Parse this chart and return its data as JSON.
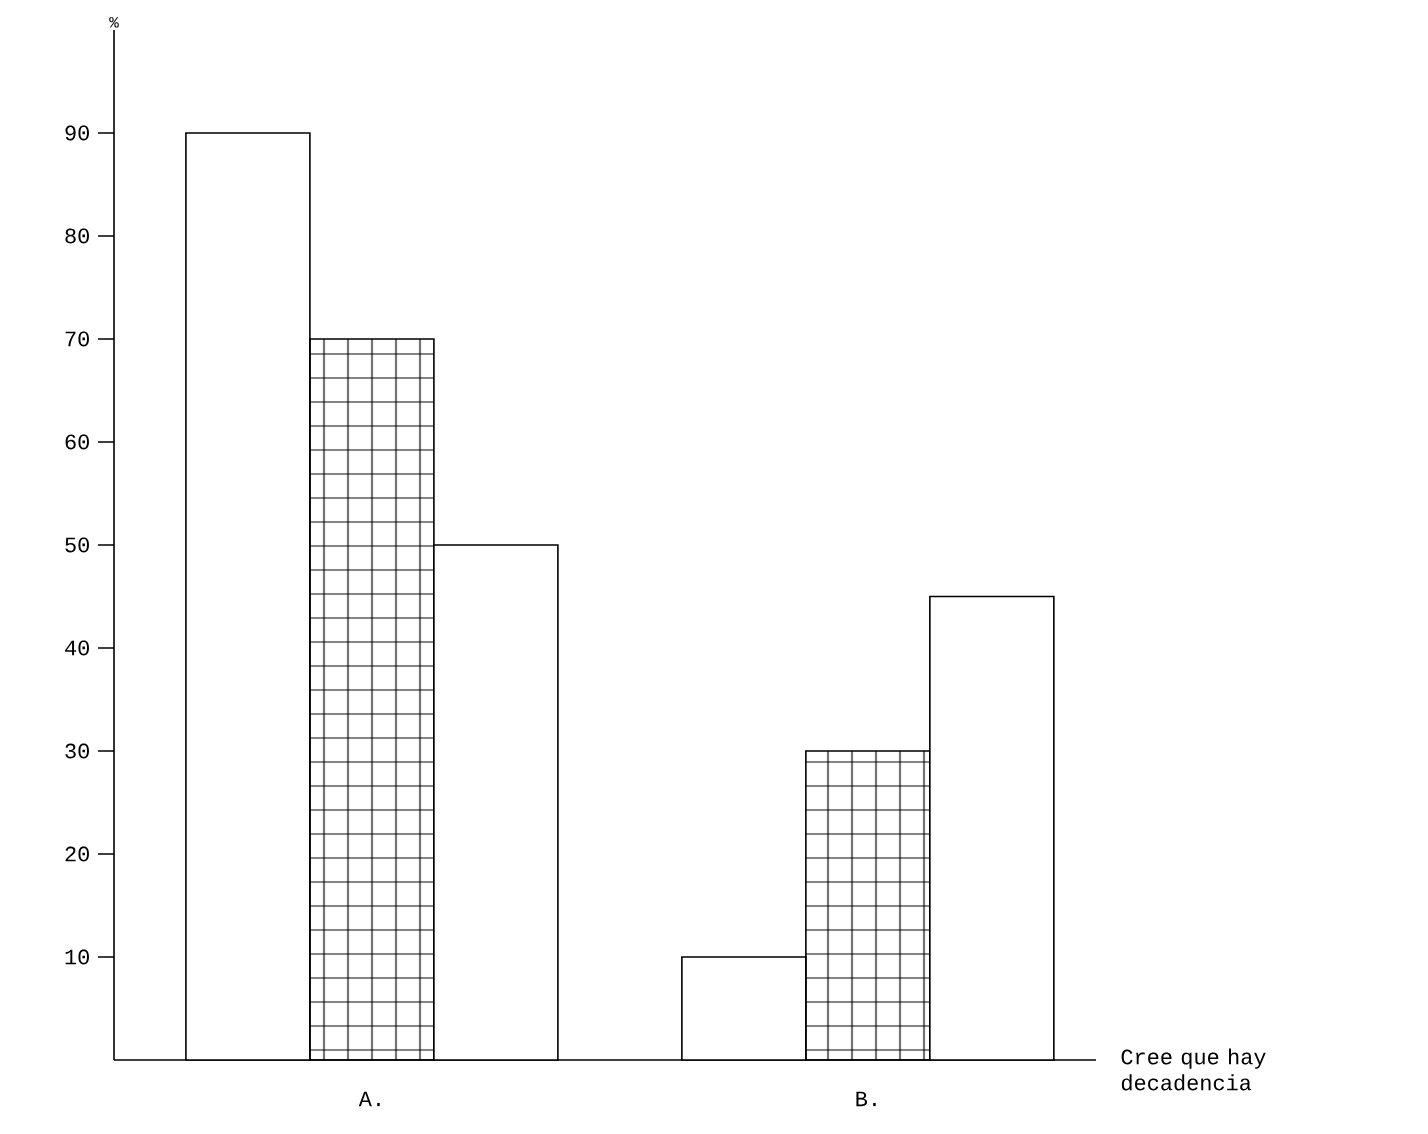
{
  "chart_data": {
    "type": "bar",
    "categories": [
      "A.",
      "B."
    ],
    "series": [
      {
        "color": "#ffffff",
        "values": [
          90,
          10
        ]
      },
      {
        "color": "#000000",
        "values": [
          70,
          30
        ]
      },
      {
        "color": "#ffffff",
        "values": [
          50,
          45
        ]
      }
    ],
    "ylabel": "%",
    "annotations": [
      "Cree que hay decadencia"
    ],
    "ylim": [
      0,
      100
    ],
    "yticks": [
      10,
      20,
      30,
      40,
      50,
      60,
      70,
      80,
      90
    ],
    "grid": false
  }
}
